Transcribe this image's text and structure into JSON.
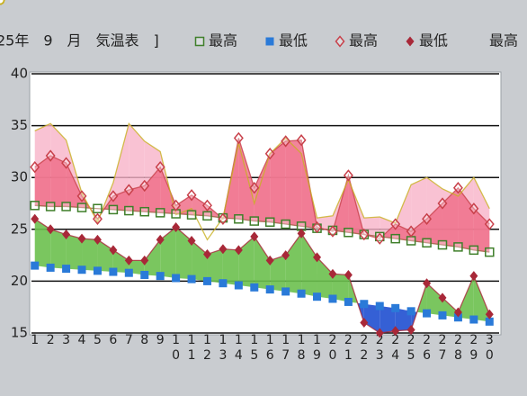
{
  "chart_data": {
    "type": "line",
    "title": "25年　9　月　気温表　]",
    "categories": [
      "1",
      "2",
      "3",
      "4",
      "5",
      "6",
      "7",
      "8",
      "9",
      "10",
      "11",
      "12",
      "13",
      "14",
      "15",
      "16",
      "17",
      "18",
      "19",
      "20",
      "21",
      "22",
      "23",
      "24",
      "25",
      "26",
      "27",
      "28",
      "29",
      "30"
    ],
    "series": [
      {
        "name": "最高",
        "color": "#3f7f2a",
        "marker": "square-open",
        "values": [
          27.3,
          27.2,
          27.2,
          27.1,
          27.0,
          26.9,
          26.8,
          26.7,
          26.6,
          26.5,
          26.4,
          26.3,
          26.1,
          26.0,
          25.8,
          25.7,
          25.5,
          25.3,
          25.1,
          24.9,
          24.7,
          24.5,
          24.3,
          24.1,
          23.9,
          23.7,
          23.5,
          23.3,
          23.0,
          22.8
        ]
      },
      {
        "name": "最低",
        "color": "#2a7ad8",
        "marker": "square",
        "values": [
          21.5,
          21.3,
          21.2,
          21.1,
          21.0,
          20.9,
          20.8,
          20.6,
          20.5,
          20.3,
          20.2,
          20.0,
          19.8,
          19.6,
          19.4,
          19.2,
          19.0,
          18.8,
          18.5,
          18.3,
          18.0,
          17.8,
          17.6,
          17.4,
          17.1,
          16.9,
          16.7,
          16.5,
          16.3,
          16.1
        ]
      },
      {
        "name": "最高",
        "color": "#c8404a",
        "marker": "diamond-open",
        "values": [
          31.0,
          32.1,
          31.4,
          28.2,
          26.0,
          28.2,
          28.8,
          29.2,
          31.0,
          27.3,
          28.3,
          27.3,
          26.0,
          33.8,
          29.0,
          32.3,
          33.5,
          33.6,
          25.2,
          24.8,
          30.2,
          24.5,
          24.1,
          25.5,
          24.8,
          26.0,
          27.5,
          29.0,
          27.0,
          25.5
        ]
      },
      {
        "name": "最低",
        "color": "#a82838",
        "marker": "diamond",
        "values": [
          26.0,
          25.0,
          24.5,
          24.1,
          24.0,
          23.0,
          22.0,
          22.0,
          24.0,
          25.2,
          23.9,
          22.6,
          23.1,
          23.0,
          24.3,
          22.0,
          22.5,
          24.6,
          22.3,
          20.7,
          20.6,
          16.0,
          15.0,
          15.2,
          15.3,
          19.8,
          18.4,
          17.0,
          20.5,
          16.8
        ]
      },
      {
        "name": "最高",
        "color": "#c8b020",
        "marker": "circle-open",
        "values": [
          34.5,
          35.2,
          33.6,
          28.5,
          25.7,
          29.5,
          35.2,
          33.5,
          32.5,
          26.4,
          27.0,
          24.0,
          26.1,
          33.3,
          27.5,
          32.3,
          33.8,
          32.3,
          26.1,
          26.3,
          29.8,
          26.1,
          26.2,
          25.6,
          29.3,
          30.0,
          28.9,
          28.2,
          30.0,
          27.0
        ]
      }
    ],
    "ylim": [
      15,
      40
    ],
    "yticks": [
      15,
      20,
      25,
      30,
      35,
      40
    ],
    "grid": true
  }
}
